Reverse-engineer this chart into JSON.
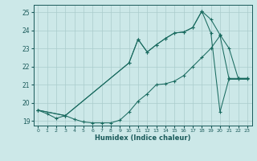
{
  "xlabel": "Humidex (Indice chaleur)",
  "bg_color": "#cce8e8",
  "grid_color": "#aacccc",
  "line_color": "#1a6b60",
  "xlim": [
    -0.5,
    23.5
  ],
  "ylim": [
    18.75,
    25.4
  ],
  "yticks": [
    19,
    20,
    21,
    22,
    23,
    24,
    25
  ],
  "xticks": [
    0,
    1,
    2,
    3,
    4,
    5,
    6,
    7,
    8,
    9,
    10,
    11,
    12,
    13,
    14,
    15,
    16,
    17,
    18,
    19,
    20,
    21,
    22,
    23
  ],
  "line_a_x": [
    0,
    1,
    2,
    3,
    4,
    5,
    6,
    7,
    8,
    9,
    10,
    11,
    12,
    13,
    14,
    15,
    16,
    17,
    18,
    19,
    20,
    21,
    22,
    23
  ],
  "line_a_y": [
    19.6,
    19.4,
    19.15,
    19.3,
    19.1,
    18.95,
    18.9,
    18.9,
    18.9,
    19.05,
    19.5,
    20.1,
    20.5,
    21.0,
    21.05,
    21.2,
    21.5,
    22.0,
    22.5,
    23.0,
    23.7,
    21.3,
    21.3,
    21.3
  ],
  "line_b_x": [
    0,
    3,
    10,
    11,
    12,
    13,
    14,
    15,
    16,
    17,
    18,
    19,
    20,
    21,
    22,
    23
  ],
  "line_b_y": [
    19.6,
    19.3,
    22.2,
    23.5,
    22.8,
    23.2,
    23.55,
    23.85,
    23.9,
    24.15,
    25.05,
    24.6,
    23.75,
    23.0,
    21.35,
    21.35
  ],
  "line_c_x": [
    0,
    3,
    10,
    11,
    12,
    13,
    14,
    15,
    16,
    17,
    18,
    19,
    20,
    21,
    22,
    23
  ],
  "line_c_y": [
    19.6,
    19.3,
    22.2,
    23.5,
    22.8,
    23.2,
    23.55,
    23.85,
    23.9,
    24.15,
    25.05,
    23.85,
    19.5,
    21.35,
    21.35,
    21.35
  ]
}
